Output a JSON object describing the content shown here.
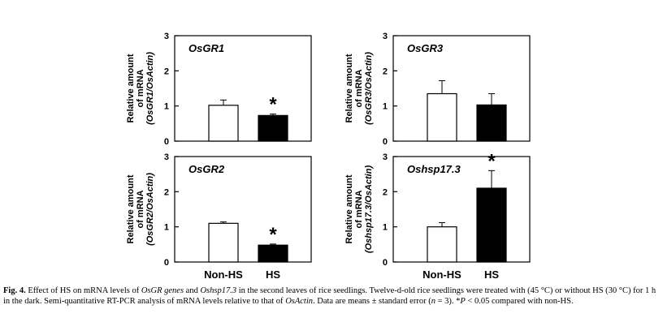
{
  "chart_data": [
    {
      "type": "bar",
      "title": "OsGR1",
      "ylabel_lines": [
        "Relative amount",
        "of mRNA",
        "(OsGR1/OsActin)"
      ],
      "categories": [
        "Non-HS",
        "HS"
      ],
      "values": [
        1.02,
        0.73
      ],
      "errors": [
        0.15,
        0.04
      ],
      "significant": [
        false,
        true
      ],
      "significance_mark": "*",
      "ylim": [
        0,
        3
      ],
      "yticks": [
        "0",
        "1",
        "2",
        "3"
      ],
      "show_xticklabels": false,
      "fill_colors": [
        "#ffffff",
        "#000000"
      ]
    },
    {
      "type": "bar",
      "title": "OsGR3",
      "ylabel_lines": [
        "Relative amount",
        "of mRNA",
        "(OsGR3/OsActin)"
      ],
      "categories": [
        "Non-HS",
        "HS"
      ],
      "values": [
        1.35,
        1.03
      ],
      "errors": [
        0.37,
        0.32
      ],
      "significant": [
        false,
        false
      ],
      "significance_mark": "*",
      "ylim": [
        0,
        3
      ],
      "yticks": [
        "0",
        "1",
        "2",
        "3"
      ],
      "show_xticklabels": false,
      "fill_colors": [
        "#ffffff",
        "#000000"
      ]
    },
    {
      "type": "bar",
      "title": "OsGR2",
      "ylabel_lines": [
        "Relative amount",
        "of mRNA",
        "(OsGR2/OsActin)"
      ],
      "categories": [
        "Non-HS",
        "HS"
      ],
      "values": [
        1.1,
        0.48
      ],
      "errors": [
        0.04,
        0.03
      ],
      "significant": [
        false,
        true
      ],
      "significance_mark": "*",
      "ylim": [
        0,
        3
      ],
      "yticks": [
        "0",
        "1",
        "2",
        "3"
      ],
      "show_xticklabels": true,
      "fill_colors": [
        "#ffffff",
        "#000000"
      ]
    },
    {
      "type": "bar",
      "title": "Oshsp17.3",
      "ylabel_lines": [
        "Relative amount",
        "of mRNA",
        "(Oshsp17.3/OsActin)"
      ],
      "categories": [
        "Non-HS",
        "HS"
      ],
      "values": [
        1.0,
        2.1
      ],
      "errors": [
        0.12,
        0.5
      ],
      "significant": [
        false,
        true
      ],
      "significance_mark": "*",
      "ylim": [
        0,
        3
      ],
      "yticks": [
        "0",
        "1",
        "2",
        "3"
      ],
      "show_xticklabels": true,
      "fill_colors": [
        "#ffffff",
        "#000000"
      ]
    }
  ],
  "caption": {
    "label": "Fig. 4.",
    "parts": [
      {
        "t": " Effect of HS on mRNA levels of ",
        "s": ""
      },
      {
        "t": "OsGR genes",
        "s": "i"
      },
      {
        "t": " and ",
        "s": ""
      },
      {
        "t": "Oshsp17.3",
        "s": "i"
      },
      {
        "t": " in the second leaves of rice seedlings. Twelve-d-old rice seedlings were treated with (45 °C) or without HS (30 °C) for 1 h in the dark. Semi-quantitative RT-PCR analysis of mRNA levels relative to that of ",
        "s": ""
      },
      {
        "t": "OsActin",
        "s": "i"
      },
      {
        "t": ". Data are means ± standard error (",
        "s": ""
      },
      {
        "t": "n",
        "s": "i"
      },
      {
        "t": " = 3). *",
        "s": ""
      },
      {
        "t": "P",
        "s": "i"
      },
      {
        "t": " < 0.05 compared with non-HS.",
        "s": ""
      }
    ]
  }
}
